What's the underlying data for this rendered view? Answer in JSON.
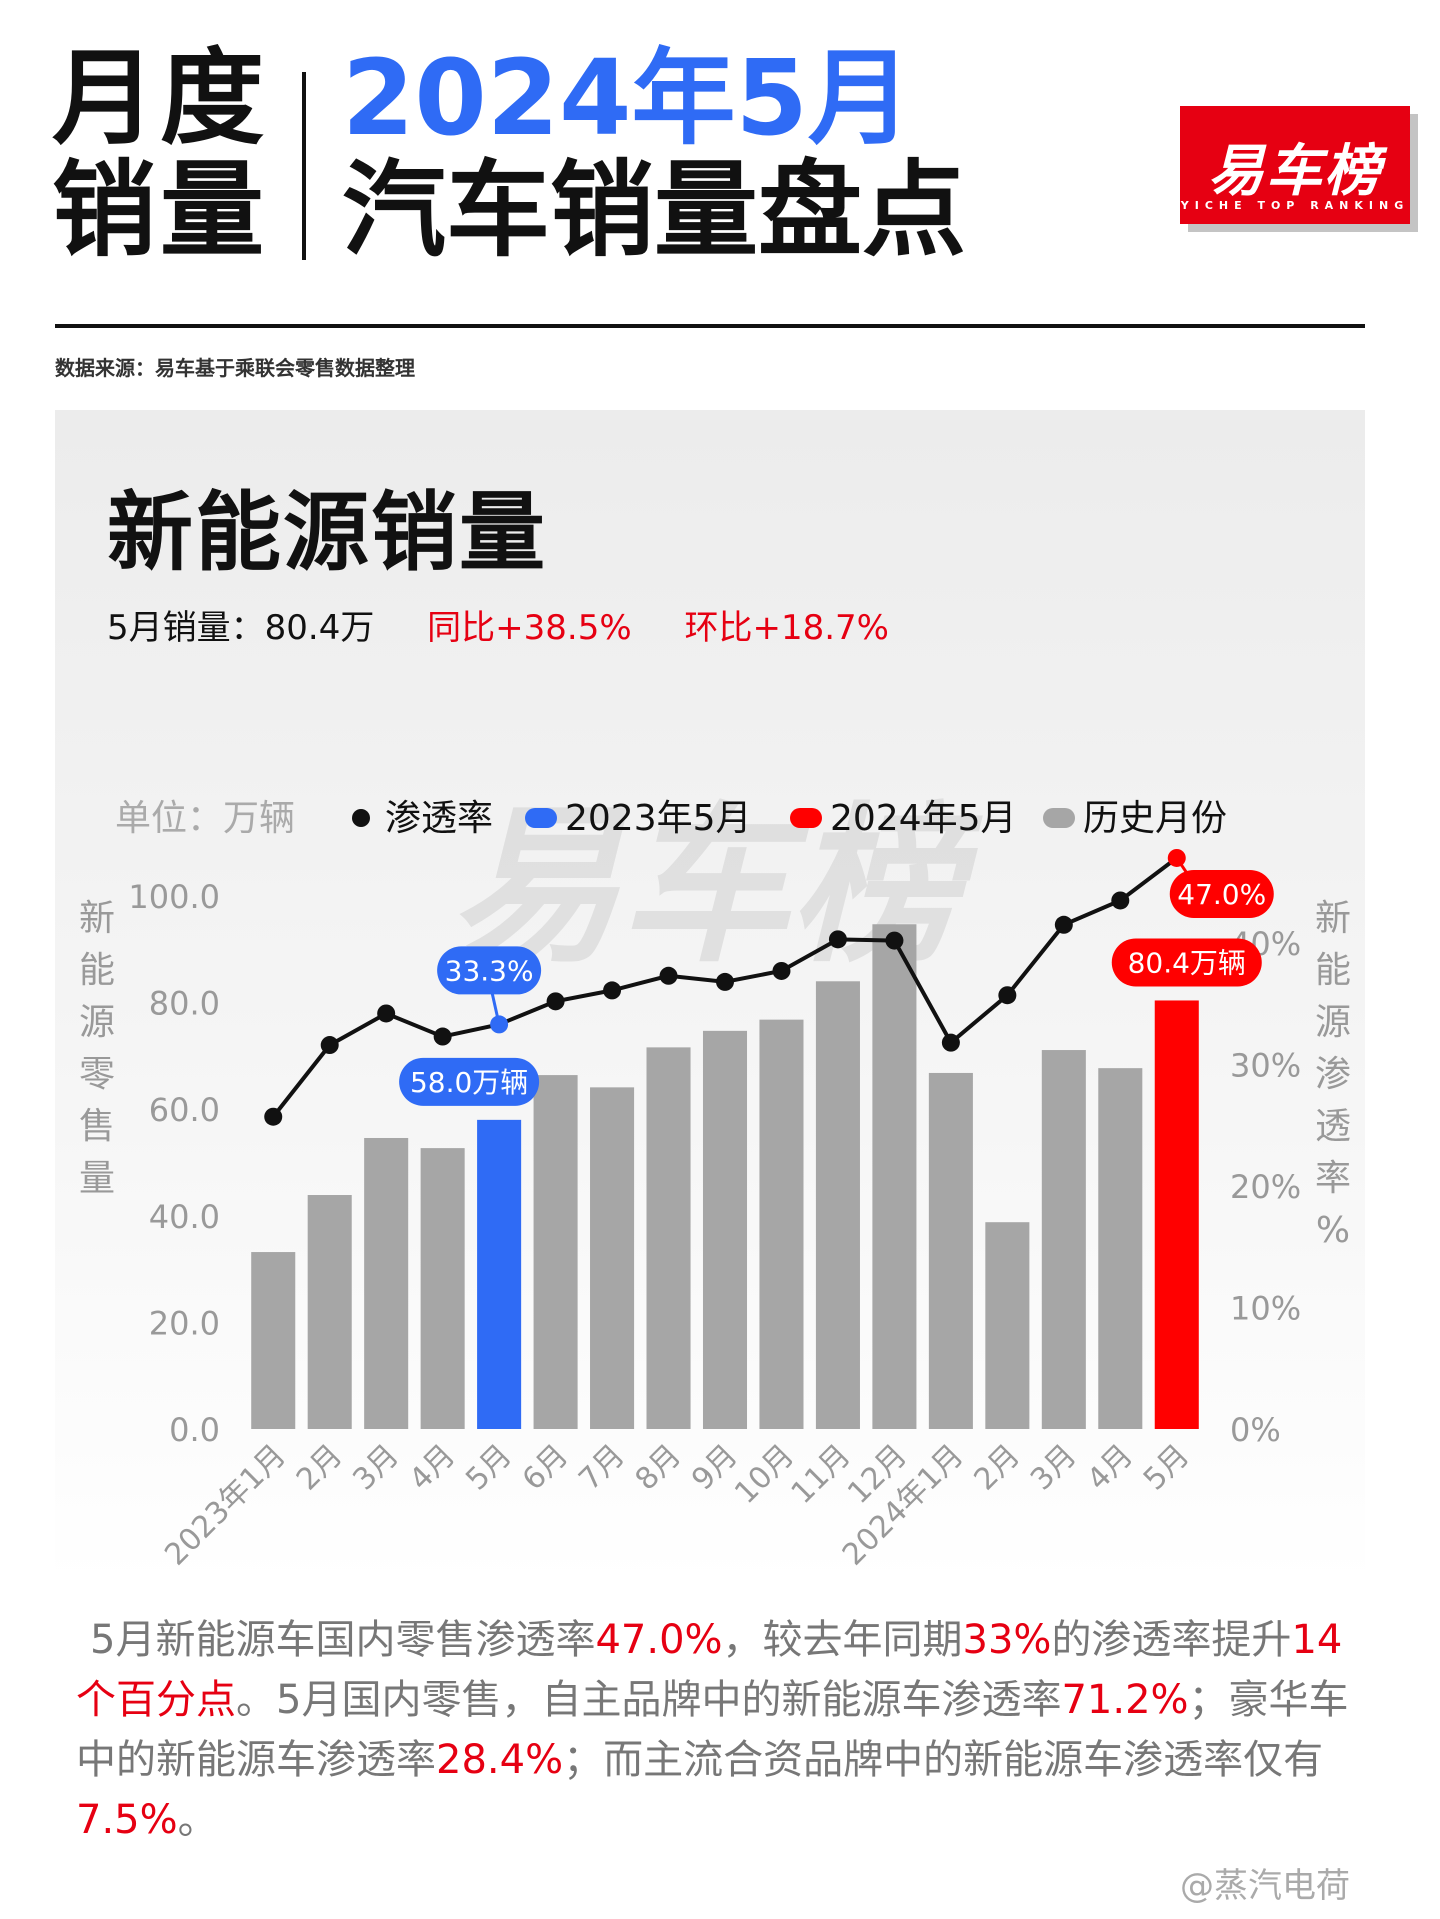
{
  "header": {
    "left_line1": "月度",
    "left_line2": "销量",
    "right_line1": "2024年5月",
    "right_line2": "汽车销量盘点"
  },
  "logo": {
    "name": "易车榜",
    "tagline": "YICHE TOP RANKING"
  },
  "source": "数据来源：易车基于乘联会零售数据整理",
  "section": {
    "title": "新能源销量",
    "sales": "5月销量：80.4万",
    "yoy": "同比+38.5%",
    "mom": "环比+18.7%"
  },
  "chart_data": {
    "type": "bar",
    "unit": "单位：万辆",
    "categories": [
      "2023年1月",
      "2月",
      "3月",
      "4月",
      "5月",
      "6月",
      "7月",
      "8月",
      "9月",
      "10月",
      "11月",
      "12月",
      "2024年1月",
      "2月",
      "3月",
      "4月",
      "5月"
    ],
    "series": [
      {
        "name": "历史月份",
        "type": "bar",
        "axis": "left",
        "values": [
          33.2,
          43.9,
          54.6,
          52.7,
          58.0,
          66.4,
          64.1,
          71.6,
          74.7,
          76.8,
          84.0,
          94.7,
          66.8,
          38.8,
          71.1,
          67.7,
          80.4
        ]
      },
      {
        "name": "渗透率",
        "type": "line",
        "axis": "right",
        "values": [
          25.7,
          31.6,
          34.2,
          32.3,
          33.3,
          35.2,
          36.1,
          37.3,
          36.8,
          37.7,
          40.3,
          40.2,
          31.8,
          35.7,
          41.5,
          43.5,
          47.0
        ]
      }
    ],
    "highlight": [
      {
        "index": 4,
        "name": "2023年5月",
        "color": "#2f6bf5"
      },
      {
        "index": 16,
        "name": "2024年5月",
        "color": "#ff0000"
      }
    ],
    "legend": [
      "渗透率",
      "2023年5月",
      "2024年5月",
      "历史月份"
    ],
    "legend_position": "top",
    "ylabel": "新能源零售量",
    "y2label": "新能源渗透率%",
    "ylim": [
      0,
      100
    ],
    "yticks": [
      "0.0",
      "20.0",
      "40.0",
      "60.0",
      "80.0",
      "100.0"
    ],
    "y2lim": [
      0,
      40
    ],
    "y2ticks": [
      "0%",
      "10%",
      "20%",
      "30%",
      "40%"
    ],
    "annotations": {
      "bar_2023": "58.0万辆",
      "bar_2024": "80.4万辆",
      "rate_2023": "33.3%",
      "rate_2024": "47.0%"
    },
    "watermark": "易车榜",
    "colors": {
      "bar": "#a6a6a6",
      "line": "#111111",
      "blue": "#2f6bf5",
      "red": "#ff0000"
    }
  },
  "description": {
    "p1": "5月新能源车国内零售渗透率",
    "v1": "47.0%",
    "p2": "，较去年同期",
    "v2": "33%",
    "p3": "的渗透率提升",
    "v3": "14个百分点",
    "p4": "。5月国内零售，自主品牌中的新能源车渗透率",
    "v4": "71.2%",
    "p5": "；豪华车中的新能源车渗透率",
    "v5": "28.4%",
    "p6": "；而主流合资品牌中的新能源车渗透率仅有",
    "v6": "7.5%",
    "p7": "。"
  },
  "watermark_footer": "@蒸汽电荷"
}
